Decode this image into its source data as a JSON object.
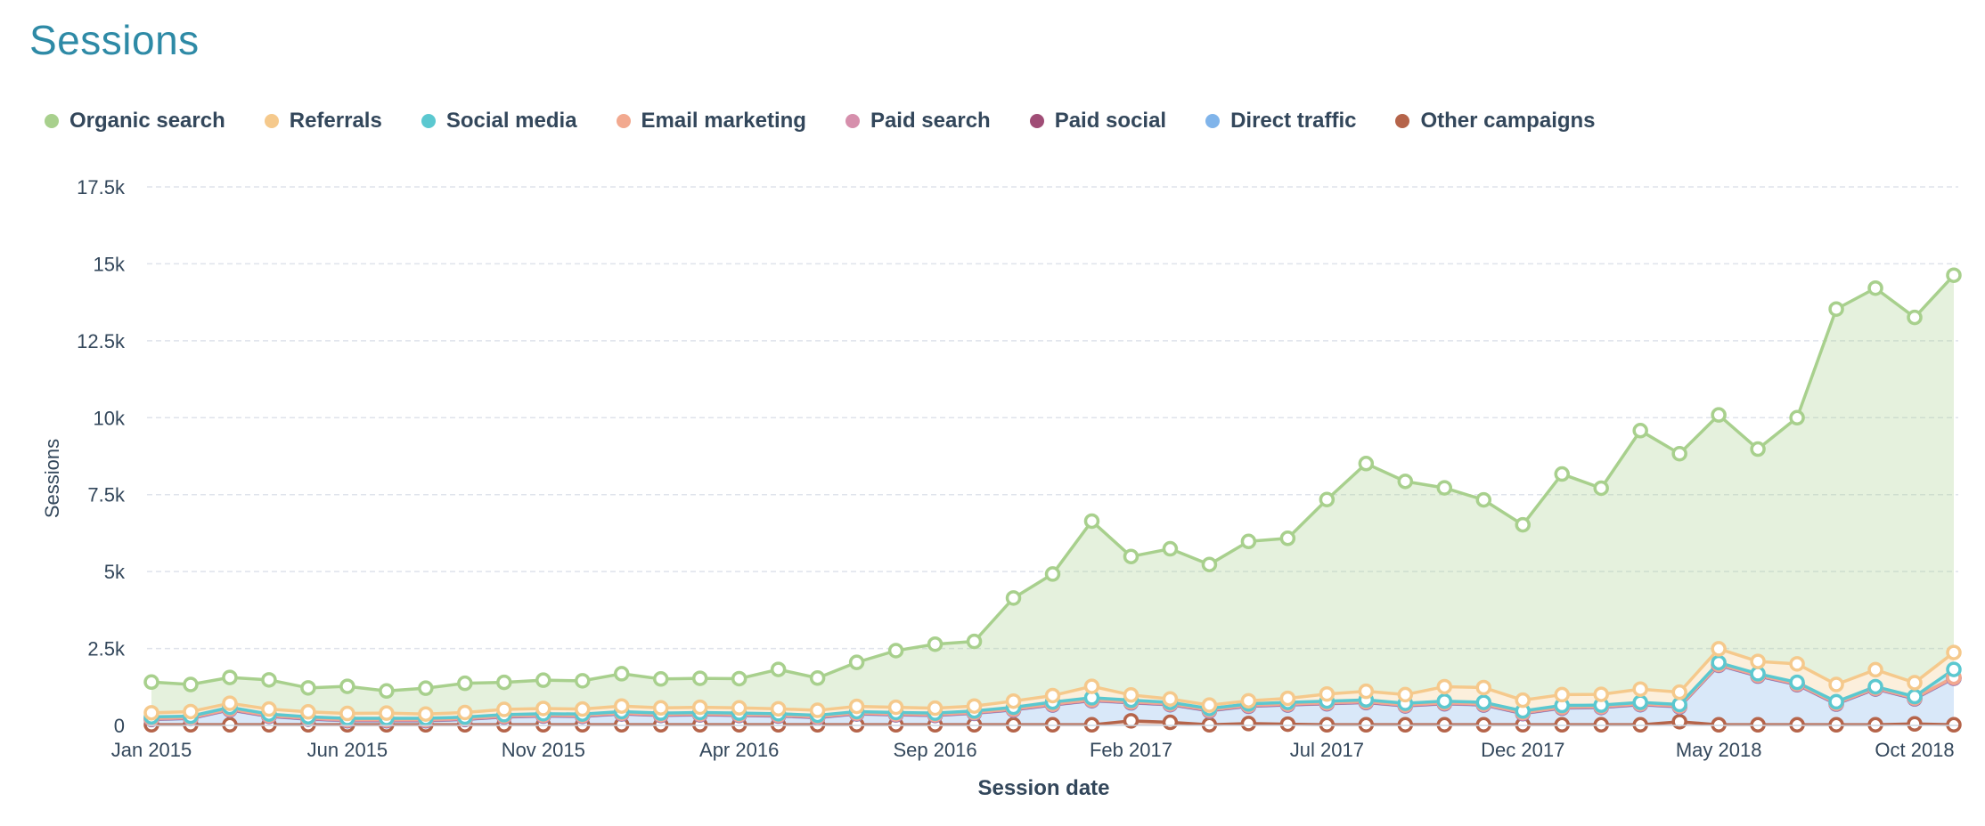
{
  "title": "Sessions",
  "chart_data": {
    "type": "area",
    "stacked": true,
    "xlabel": "Session date",
    "ylabel": "Sessions",
    "ylim": [
      0,
      17500
    ],
    "yticks": [
      0,
      2500,
      5000,
      7500,
      10000,
      12500,
      15000,
      17500
    ],
    "ytick_labels": [
      "0",
      "2.5k",
      "5k",
      "7.5k",
      "10k",
      "12.5k",
      "15k",
      "17.5k"
    ],
    "xtick_labels": [
      {
        "index": 0,
        "label": "Jan 2015"
      },
      {
        "index": 5,
        "label": "Jun 2015"
      },
      {
        "index": 10,
        "label": "Nov 2015"
      },
      {
        "index": 15,
        "label": "Apr 2016"
      },
      {
        "index": 20,
        "label": "Sep 2016"
      },
      {
        "index": 25,
        "label": "Feb 2017"
      },
      {
        "index": 30,
        "label": "Jul 2017"
      },
      {
        "index": 35,
        "label": "Dec 2017"
      },
      {
        "index": 40,
        "label": "May 2018"
      },
      {
        "index": 45,
        "label": "Oct 2018"
      }
    ],
    "x": [
      "Jan 2015",
      "Feb 2015",
      "Mar 2015",
      "Apr 2015",
      "May 2015",
      "Jun 2015",
      "Jul 2015",
      "Aug 2015",
      "Sep 2015",
      "Oct 2015",
      "Nov 2015",
      "Dec 2015",
      "Jan 2016",
      "Feb 2016",
      "Mar 2016",
      "Apr 2016",
      "May 2016",
      "Jun 2016",
      "Jul 2016",
      "Aug 2016",
      "Sep 2016",
      "Oct 2016",
      "Nov 2016",
      "Dec 2016",
      "Jan 2017",
      "Feb 2017",
      "Mar 2017",
      "Apr 2017",
      "May 2017",
      "Jun 2017",
      "Jul 2017",
      "Aug 2017",
      "Sep 2017",
      "Oct 2017",
      "Nov 2017",
      "Dec 2017",
      "Jan 2018",
      "Feb 2018",
      "Mar 2018",
      "Apr 2018",
      "May 2018",
      "Jun 2018",
      "Jul 2018",
      "Aug 2018",
      "Sep 2018",
      "Oct 2018",
      "Nov 2018"
    ],
    "legend_position": "top-left",
    "grid": true,
    "series": [
      {
        "name": "Other campaigns",
        "color": "#b5644a",
        "values": [
          20,
          20,
          20,
          20,
          20,
          20,
          20,
          20,
          20,
          20,
          20,
          20,
          20,
          20,
          20,
          20,
          20,
          20,
          20,
          20,
          20,
          20,
          20,
          20,
          20,
          150,
          100,
          20,
          60,
          40,
          20,
          20,
          20,
          20,
          20,
          20,
          20,
          20,
          20,
          120,
          20,
          20,
          20,
          20,
          20,
          50,
          20
        ]
      },
      {
        "name": "Direct traffic",
        "color": "#80b4ea",
        "values": [
          170,
          200,
          480,
          270,
          180,
          130,
          130,
          130,
          170,
          250,
          280,
          270,
          350,
          300,
          320,
          300,
          280,
          230,
          350,
          320,
          300,
          370,
          480,
          640,
          780,
          580,
          570,
          450,
          560,
          620,
          680,
          720,
          610,
          680,
          640,
          360,
          540,
          560,
          650,
          480,
          1930,
          1580,
          1300,
          670,
          1160,
          810,
          1510
        ]
      },
      {
        "name": "Paid social",
        "color": "#a04d76",
        "values": [
          10,
          10,
          10,
          10,
          10,
          10,
          10,
          10,
          10,
          10,
          10,
          10,
          10,
          10,
          10,
          10,
          10,
          10,
          10,
          10,
          10,
          10,
          10,
          10,
          10,
          10,
          10,
          10,
          10,
          10,
          10,
          10,
          10,
          10,
          10,
          10,
          10,
          10,
          10,
          10,
          10,
          10,
          10,
          10,
          10,
          10,
          10
        ]
      },
      {
        "name": "Paid search",
        "color": "#d68fac",
        "values": [
          10,
          10,
          10,
          10,
          10,
          10,
          10,
          10,
          10,
          10,
          10,
          10,
          10,
          10,
          10,
          10,
          10,
          10,
          10,
          10,
          10,
          10,
          10,
          10,
          10,
          10,
          10,
          10,
          10,
          10,
          10,
          10,
          10,
          10,
          10,
          10,
          10,
          10,
          10,
          10,
          10,
          10,
          10,
          10,
          10,
          10,
          10
        ]
      },
      {
        "name": "Email marketing",
        "color": "#f2a98f",
        "values": [
          20,
          20,
          20,
          20,
          20,
          20,
          20,
          20,
          20,
          20,
          20,
          20,
          20,
          20,
          20,
          20,
          20,
          20,
          20,
          20,
          20,
          20,
          20,
          20,
          20,
          20,
          20,
          20,
          20,
          20,
          20,
          20,
          20,
          20,
          20,
          20,
          20,
          20,
          20,
          20,
          20,
          20,
          20,
          20,
          20,
          20,
          20
        ]
      },
      {
        "name": "Social media",
        "color": "#5bc8d0",
        "values": [
          50,
          40,
          50,
          40,
          40,
          40,
          40,
          40,
          40,
          40,
          40,
          40,
          40,
          40,
          40,
          40,
          40,
          40,
          40,
          40,
          40,
          40,
          50,
          60,
          60,
          50,
          40,
          40,
          40,
          50,
          50,
          50,
          50,
          50,
          50,
          50,
          50,
          40,
          40,
          40,
          50,
          40,
          40,
          40,
          40,
          40,
          250
        ]
      },
      {
        "name": "Referrals",
        "color": "#f5c98c",
        "values": [
          130,
          150,
          130,
          160,
          160,
          160,
          170,
          140,
          150,
          170,
          170,
          160,
          180,
          170,
          170,
          170,
          160,
          160,
          170,
          170,
          160,
          160,
          200,
          210,
          370,
          170,
          110,
          110,
          100,
          130,
          230,
          280,
          280,
          470,
          480,
          350,
          350,
          350,
          430,
          400,
          450,
          400,
          600,
          560,
          550,
          450,
          550
        ]
      },
      {
        "name": "Organic search",
        "color": "#a8d08d",
        "values": [
          1000,
          880,
          840,
          950,
          780,
          880,
          720,
          840,
          950,
          880,
          920,
          920,
          1050,
          940,
          940,
          950,
          1280,
          1050,
          1430,
          1840,
          2080,
          2100,
          3350,
          3950,
          5370,
          4500,
          4880,
          4570,
          5180,
          5200,
          6320,
          7400,
          6930,
          6460,
          6100,
          5700,
          7170,
          6700,
          8400,
          7750,
          7600,
          6900,
          8000,
          12200,
          12400,
          11870,
          12260
        ]
      }
    ]
  }
}
